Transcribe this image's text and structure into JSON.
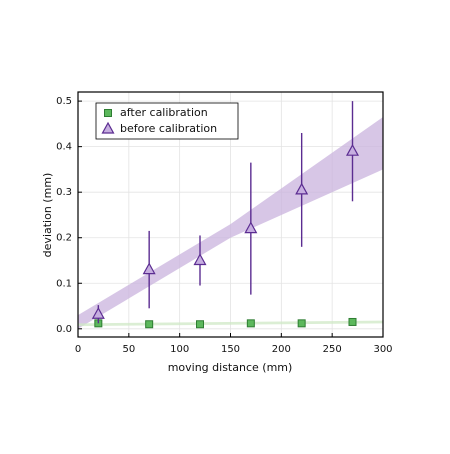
{
  "chart_data": {
    "type": "scatter",
    "xlabel": "moving distance (mm)",
    "ylabel": "deviation (mm)",
    "xlim": [
      0,
      300
    ],
    "ylim": [
      -0.018,
      0.52
    ],
    "xticks": [
      0,
      50,
      100,
      150,
      200,
      250,
      300
    ],
    "yticks": [
      {
        "value": 0,
        "label": "0.0"
      },
      0.1,
      0.2,
      0.3,
      0.4,
      0.5
    ],
    "grid": true,
    "legend": "upper left",
    "bands": [
      {
        "color": "#c9b3dd",
        "x": [
          0,
          150,
          300
        ],
        "upper": [
          0.03,
          0.23,
          0.465
        ],
        "lower": [
          0.0,
          0.2,
          0.35
        ]
      },
      {
        "color": "#cfe8c6",
        "x": [
          0,
          300
        ],
        "upper": [
          0.012,
          0.018
        ],
        "lower": [
          0.006,
          0.012
        ]
      }
    ],
    "series": [
      {
        "name": "after calibration",
        "marker": "square",
        "color": "#5cb85c",
        "edge": "#2e7d32",
        "x": [
          20,
          70,
          120,
          170,
          220,
          270
        ],
        "values": [
          0.012,
          0.01,
          0.01,
          0.012,
          0.012,
          0.015
        ],
        "errors": [
          0.005,
          0.005,
          0.004,
          0.005,
          0.004,
          0.007
        ]
      },
      {
        "name": "before calibration",
        "marker": "triangle",
        "color": "#c6aee0",
        "edge": "#5b2c91",
        "x": [
          20,
          70,
          120,
          170,
          220,
          270
        ],
        "values": [
          0.032,
          0.13,
          0.15,
          0.22,
          0.305,
          0.39
        ],
        "errors": [
          0.02,
          0.085,
          0.055,
          0.145,
          0.125,
          0.11
        ]
      }
    ]
  }
}
